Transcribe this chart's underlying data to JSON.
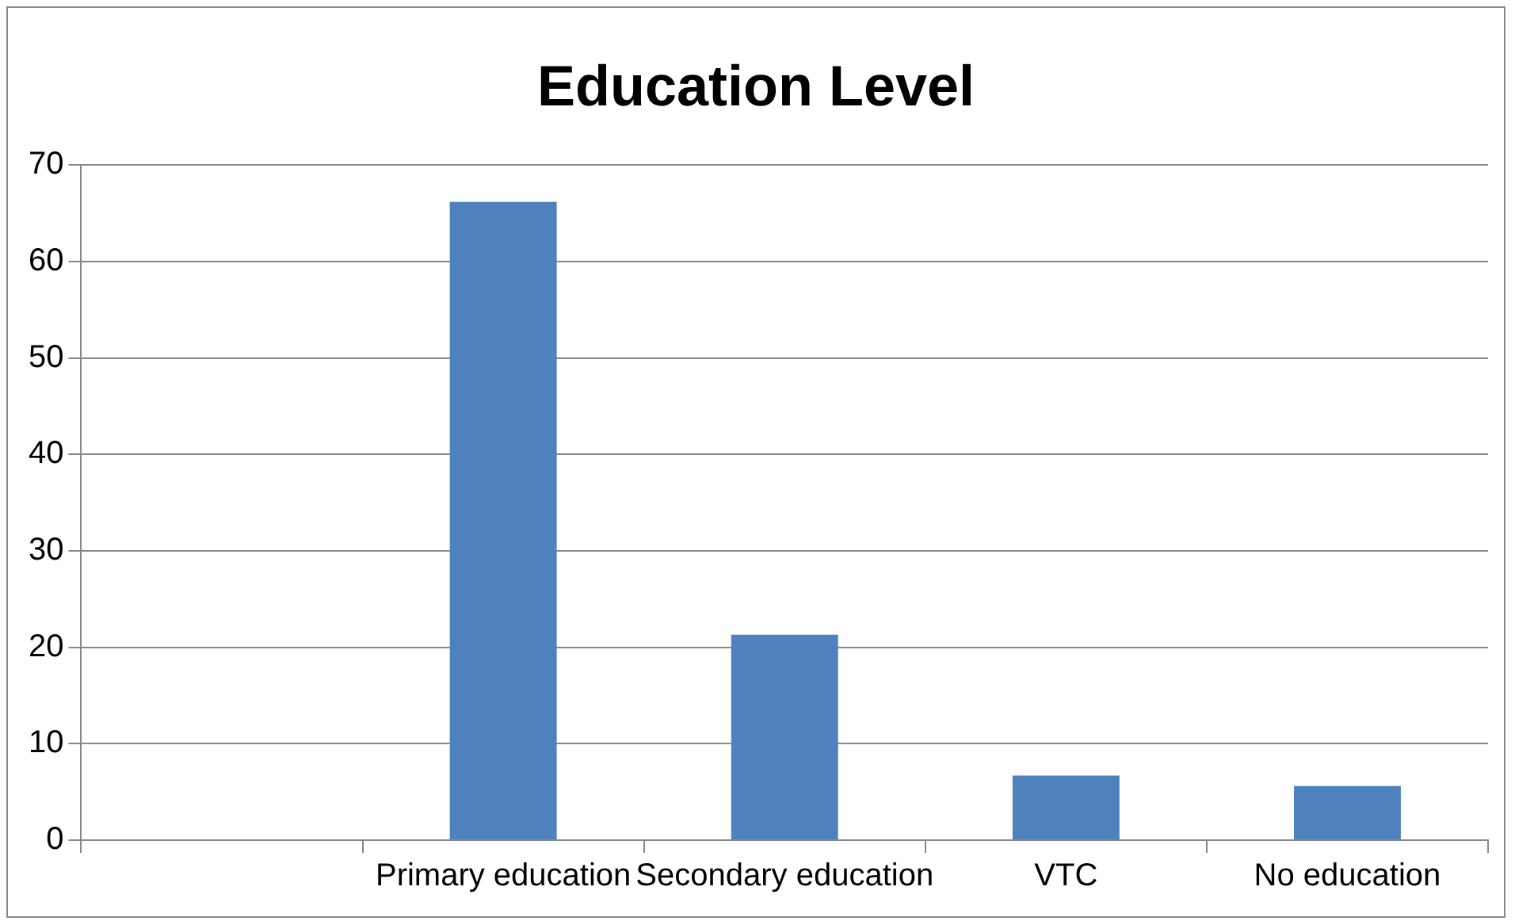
{
  "chart_data": {
    "type": "bar",
    "title": "Education Level",
    "categories": [
      null,
      "Primary education",
      "Secondary education",
      "VTC",
      "No education"
    ],
    "values": [
      null,
      66.2,
      21.3,
      6.7,
      5.6
    ],
    "color": "#4f81bd",
    "ylim": [
      0,
      70
    ],
    "yticks": [
      0,
      10,
      20,
      30,
      40,
      50,
      60,
      70
    ],
    "grid": "y"
  }
}
